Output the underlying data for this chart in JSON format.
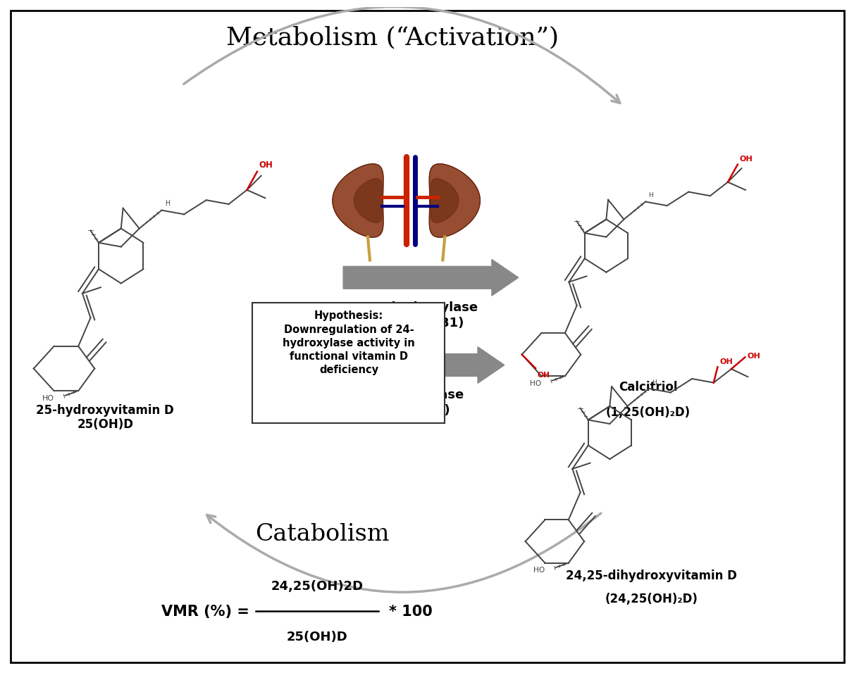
{
  "title": "Metabolism (“Activation”)",
  "bg_color": "#ffffff",
  "border_color": "#000000",
  "text_color": "#000000",
  "red_color": "#cc0000",
  "gray_color": "#888888",
  "enzyme1_label": "1α-hydroxylase\n(CYP 27B1)",
  "enzyme2_label": "24-hydroxylase\n(CYP 24A1)",
  "catabolism_label": "Catabolism",
  "compound_left": "25-hydroxyvitamin D\n25(OH)D",
  "compound_top_right_line1": "Calcitriol",
  "compound_top_right_line2": "(1,25(OH)₂D)",
  "compound_bottom_right_line1": "24,25-dihydroxyvitamin D",
  "compound_bottom_right_line2": "(24,25(OH)₂D)",
  "hypothesis_text": "Hypothesis:\nDownregulation of 24-\nhydroxylase activity in\nfunctional vitamin D\ndeficiency",
  "vmr_numerator": "24,25(OH)2D",
  "vmr_denominator": "25(OH)D",
  "fig_width": 12.0,
  "fig_height": 9.42
}
